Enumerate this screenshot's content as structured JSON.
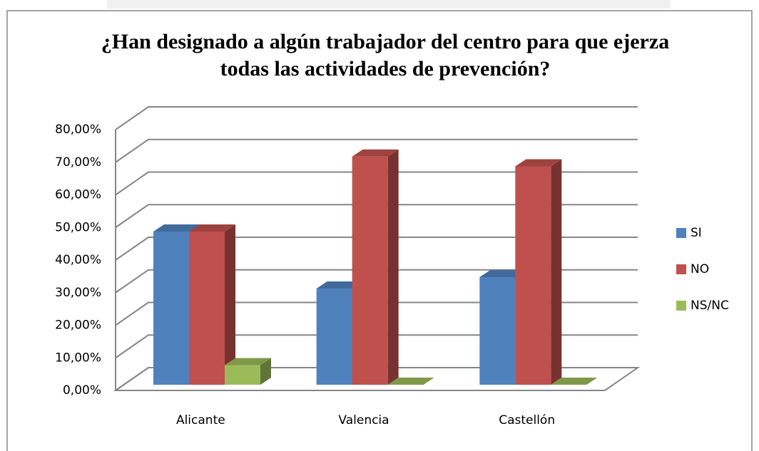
{
  "chart_data": {
    "type": "bar3d",
    "title": "¿Han designado a algún trabajador del centro para que ejerza todas las actividades de prevención?",
    "categories": [
      "Alicante",
      "Valencia",
      "Castellón"
    ],
    "series": [
      {
        "name": "SI",
        "color": "#4f81bd",
        "values": [
          47,
          29.5,
          33
        ]
      },
      {
        "name": "NO",
        "color": "#c0504d",
        "values": [
          47,
          70,
          67
        ]
      },
      {
        "name": "NS/NC",
        "color": "#9bbb59",
        "values": [
          6,
          0,
          0
        ]
      }
    ],
    "ylim": [
      0,
      80
    ],
    "yticks": [
      {
        "value": 0,
        "label": "0,00%"
      },
      {
        "value": 10,
        "label": "10,00%"
      },
      {
        "value": 20,
        "label": "20,00%"
      },
      {
        "value": 30,
        "label": "30,00%"
      },
      {
        "value": 40,
        "label": "40,00%"
      },
      {
        "value": 50,
        "label": "50,00%"
      },
      {
        "value": 60,
        "label": "60,00%"
      },
      {
        "value": 70,
        "label": "70,00%"
      },
      {
        "value": 80,
        "label": "80,00%"
      }
    ],
    "grid": true,
    "legend": "right"
  }
}
